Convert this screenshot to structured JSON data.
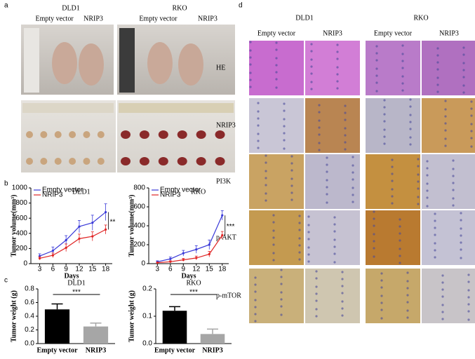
{
  "panel_letters": [
    "a",
    "b",
    "c",
    "d"
  ],
  "panel_a": {
    "groups": [
      {
        "title": "DLD1",
        "labels": [
          "Empty vector",
          "NRIP3"
        ]
      },
      {
        "title": "RKO",
        "labels": [
          "Empty vector",
          "NRIP3"
        ]
      }
    ]
  },
  "panel_d": {
    "groups": [
      {
        "title": "DLD1",
        "columns": [
          "Empty vector",
          "NRIP3"
        ]
      },
      {
        "title": "RKO",
        "columns": [
          "Empty vector",
          "NRIP3"
        ]
      }
    ],
    "rows": [
      "HE",
      "NRIP3",
      "PI3K",
      "p-AKT",
      "p-mTOR"
    ]
  },
  "chart_data": [
    {
      "type": "line",
      "title": "DLD1",
      "x_label": "Days",
      "y_label": "Tumor volume(mm³)",
      "annotation": "**",
      "x": [
        3,
        6,
        9,
        12,
        15,
        18
      ],
      "xlim": [
        1,
        19.5
      ],
      "xticks": [
        3,
        6,
        9,
        12,
        15,
        18
      ],
      "ylim": [
        0,
        1000
      ],
      "yticks": [
        0,
        200,
        400,
        600,
        800,
        1000
      ],
      "series": [
        {
          "name": "Empty vector",
          "color": "#3a3ad8",
          "values": [
            100,
            170,
            310,
            490,
            540,
            680
          ],
          "errors": [
            30,
            50,
            60,
            80,
            100,
            110
          ]
        },
        {
          "name": "NRIP3",
          "color": "#e02424",
          "values": [
            70,
            110,
            210,
            330,
            360,
            450
          ],
          "errors": [
            20,
            30,
            50,
            60,
            60,
            60
          ]
        }
      ]
    },
    {
      "type": "line",
      "title": "RKO",
      "x_label": "Days",
      "y_label": "Tumor volume(mm³)",
      "annotation": "***",
      "x": [
        3,
        6,
        9,
        12,
        15,
        18
      ],
      "xlim": [
        1,
        19.5
      ],
      "xticks": [
        3,
        6,
        9,
        12,
        15,
        18
      ],
      "ylim": [
        0,
        800
      ],
      "yticks": [
        0,
        200,
        400,
        600,
        800
      ],
      "series": [
        {
          "name": "Empty vector",
          "color": "#3a3ad8",
          "values": [
            20,
            50,
            110,
            150,
            200,
            510
          ],
          "errors": [
            10,
            20,
            30,
            40,
            50,
            50
          ]
        },
        {
          "name": "NRIP3",
          "color": "#e02424",
          "values": [
            10,
            20,
            40,
            60,
            100,
            300
          ],
          "errors": [
            5,
            10,
            15,
            20,
            30,
            40
          ]
        }
      ]
    },
    {
      "type": "bar",
      "title": "DLD1",
      "y_label": "Tumor weight (g)",
      "annotation": "***",
      "categories": [
        "Empty vector",
        "NRIP3"
      ],
      "values": [
        0.5,
        0.25
      ],
      "errors": [
        0.08,
        0.05
      ],
      "colors": [
        "#000000",
        "#a6a6a6"
      ],
      "ylim": [
        0,
        0.8
      ],
      "yticks": [
        {
          "value": 0,
          "label": "0.0"
        },
        0.2,
        0.4,
        0.6,
        0.8
      ]
    },
    {
      "type": "bar",
      "title": "RKO",
      "y_label": "Tumor weight (g)",
      "annotation": "***",
      "categories": [
        "Empty vector",
        "NRIP3"
      ],
      "values": [
        0.12,
        0.035
      ],
      "errors": [
        0.015,
        0.018
      ],
      "colors": [
        "#000000",
        "#a6a6a6"
      ],
      "ylim": [
        0,
        0.2
      ],
      "yticks": [
        {
          "value": 0,
          "label": "0.0"
        },
        0.1,
        0.2
      ]
    }
  ]
}
